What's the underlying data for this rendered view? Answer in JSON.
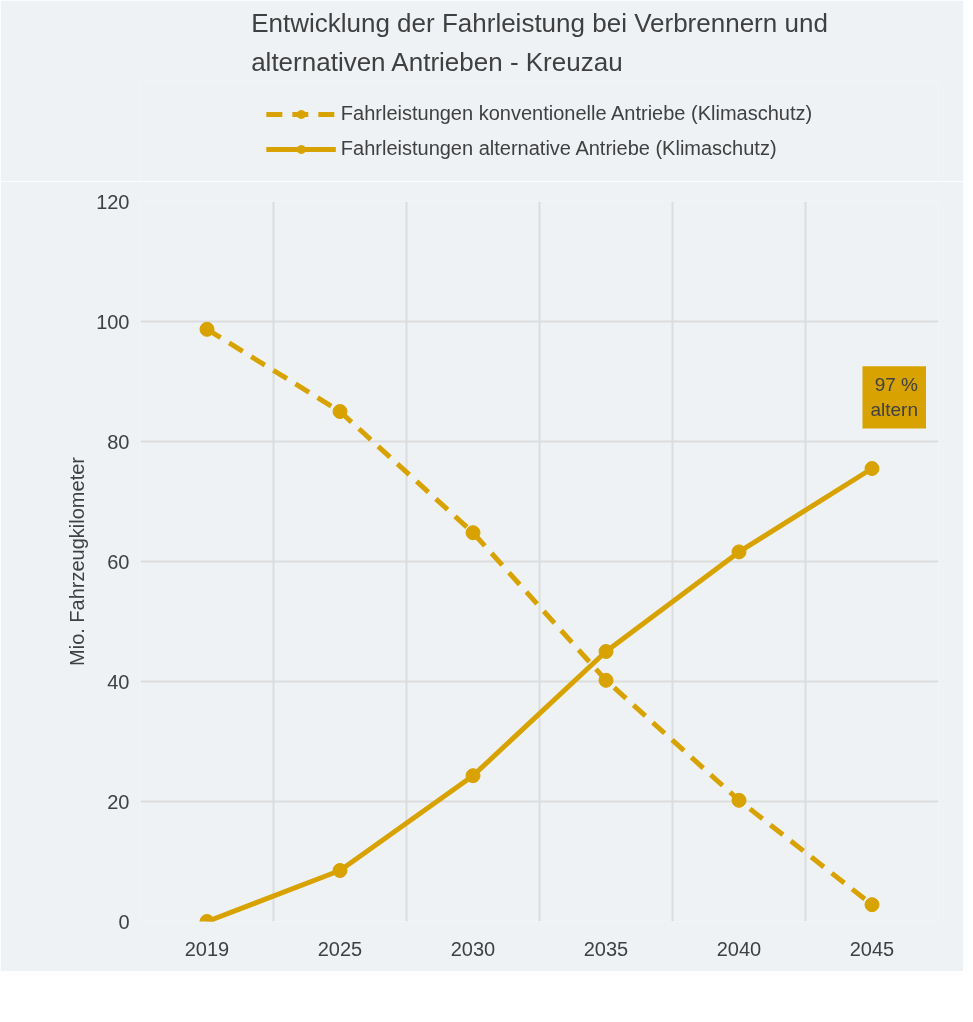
{
  "chart_data": {
    "type": "line",
    "title": "Entwicklung der Fahrleistung bei Verbrennern und\nalternativen Antrieben - Kreuzau",
    "ylabel": "Mio. Fahrzeugkilometer",
    "categories": [
      "2019",
      "2025",
      "2030",
      "2035",
      "2040",
      "2045"
    ],
    "series": [
      {
        "name": "Fahrleistungen konventionelle Antriebe (Klimaschutz)",
        "color": "#d8a300",
        "line_style": "dashed",
        "values": [
          98.7,
          85.0,
          64.8,
          40.2,
          20.2,
          2.8
        ]
      },
      {
        "name": "Fahrleistungen alternative Antriebe (Klimaschutz)",
        "color": "#d8a300",
        "line_style": "solid",
        "values": [
          0,
          8.5,
          24.3,
          45.0,
          61.6,
          75.5
        ]
      }
    ],
    "ylim": [
      0,
      120
    ],
    "yticks": [
      0,
      20,
      40,
      60,
      80,
      100,
      120
    ],
    "grid": true,
    "legend": "top",
    "marker": "circle",
    "annotations": [
      {
        "text": "97 %\naltern",
        "x": "2045",
        "y": 75.5
      }
    ]
  }
}
